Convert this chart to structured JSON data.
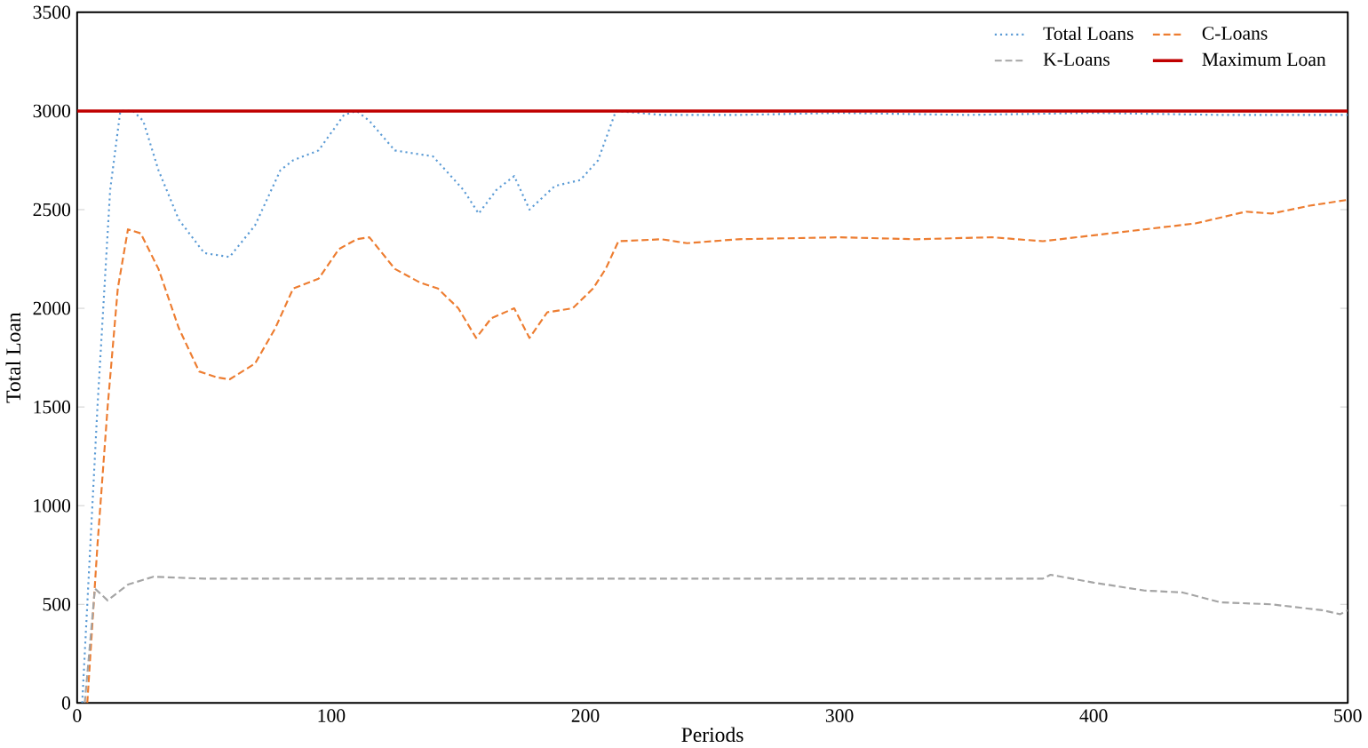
{
  "chart_data": {
    "type": "line",
    "xlabel": "Periods",
    "ylabel": "Total Loan",
    "xlim": [
      0,
      500
    ],
    "ylim": [
      0,
      3500
    ],
    "xticks": [
      0,
      100,
      200,
      300,
      400,
      500
    ],
    "yticks": [
      0,
      500,
      1000,
      1500,
      2000,
      2500,
      3000,
      3500
    ],
    "legend": "top right",
    "marker": "none",
    "series": [
      {
        "name": "Total Loans",
        "color": "#5b9bd5",
        "line_style": "dotted",
        "x": [
          2,
          8,
          13,
          17,
          22,
          26,
          32,
          40,
          50,
          60,
          70,
          80,
          85,
          95,
          105,
          110,
          115,
          125,
          135,
          140,
          145,
          152,
          158,
          165,
          172,
          178,
          188,
          198,
          205,
          212,
          230,
          260,
          300,
          350,
          400,
          450,
          500
        ],
        "values": [
          0,
          1500,
          2600,
          3000,
          3000,
          2950,
          2700,
          2450,
          2280,
          2260,
          2420,
          2700,
          2750,
          2800,
          2980,
          3000,
          2950,
          2800,
          2780,
          2770,
          2700,
          2600,
          2480,
          2600,
          2670,
          2500,
          2620,
          2650,
          2750,
          3000,
          2980,
          2980,
          2990,
          2980,
          2990,
          2980,
          2980
        ]
      },
      {
        "name": "C-Loans",
        "color": "#ed7d31",
        "line_style": "dashed",
        "x": [
          4,
          8,
          12,
          16,
          20,
          25,
          32,
          40,
          48,
          55,
          60,
          70,
          78,
          85,
          95,
          103,
          110,
          115,
          125,
          135,
          142,
          150,
          157,
          163,
          172,
          178,
          185,
          195,
          203,
          208,
          213,
          230,
          240,
          260,
          300,
          330,
          360,
          380,
          400,
          420,
          440,
          460,
          470,
          485,
          500
        ],
        "values": [
          0,
          800,
          1500,
          2100,
          2400,
          2380,
          2200,
          1900,
          1680,
          1650,
          1640,
          1720,
          1900,
          2100,
          2150,
          2300,
          2350,
          2360,
          2200,
          2130,
          2100,
          2000,
          1850,
          1950,
          2000,
          1850,
          1980,
          2000,
          2100,
          2200,
          2340,
          2350,
          2330,
          2350,
          2360,
          2350,
          2360,
          2340,
          2370,
          2400,
          2430,
          2490,
          2480,
          2520,
          2550
        ]
      },
      {
        "name": "K-Loans",
        "color": "#a5a5a5",
        "line_style": "dashed",
        "x": [
          3,
          7,
          12,
          20,
          30,
          50,
          100,
          200,
          300,
          380,
          383,
          400,
          420,
          435,
          450,
          470,
          490,
          497,
          500
        ],
        "values": [
          0,
          580,
          520,
          600,
          640,
          630,
          630,
          630,
          630,
          630,
          650,
          610,
          570,
          560,
          510,
          500,
          470,
          450,
          470
        ]
      }
    ],
    "ref_lines": [
      {
        "axis": "y",
        "value": 3000,
        "label": "Maximum Loan",
        "color": "#c00000",
        "line_style": "solid"
      }
    ]
  }
}
